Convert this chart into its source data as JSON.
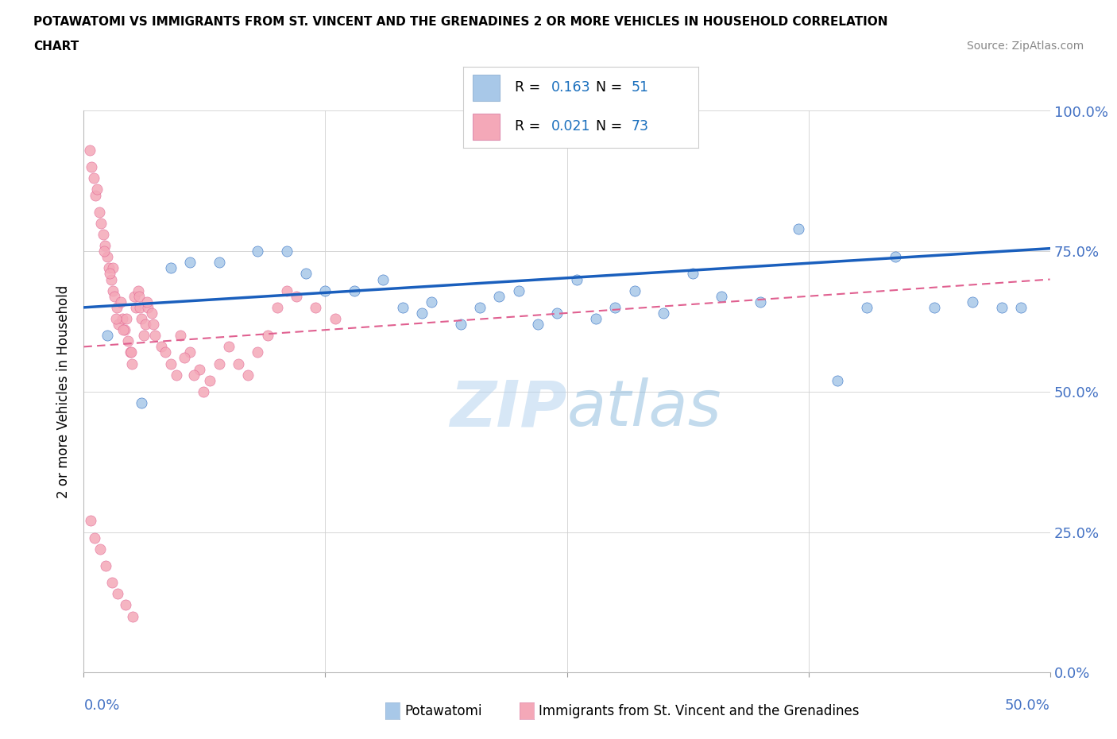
{
  "title_line1": "POTAWATOMI VS IMMIGRANTS FROM ST. VINCENT AND THE GRENADINES 2 OR MORE VEHICLES IN HOUSEHOLD CORRELATION",
  "title_line2": "CHART",
  "source_text": "Source: ZipAtlas.com",
  "ylabel": "2 or more Vehicles in Household",
  "xlim": [
    0,
    50
  ],
  "ylim": [
    0,
    100
  ],
  "yticks": [
    0,
    25,
    50,
    75,
    100
  ],
  "ytick_labels": [
    "0.0%",
    "25.0%",
    "50.0%",
    "75.0%",
    "100.0%"
  ],
  "color_blue": "#a8c8e8",
  "color_pink": "#f4a8b8",
  "trendline_blue_color": "#1a5fbd",
  "trendline_pink_color": "#e06090",
  "R_N_color": "#1a6fbd",
  "ytick_color": "#4472c4",
  "xtick_color": "#4472c4",
  "legend1_R": "0.163",
  "legend1_N": "51",
  "legend2_R": "0.021",
  "legend2_N": "73",
  "potawatomi_x": [
    1.2,
    3.0,
    4.5,
    5.5,
    7.0,
    9.0,
    10.5,
    11.5,
    12.5,
    14.0,
    15.5,
    16.5,
    17.5,
    18.0,
    19.5,
    20.5,
    21.5,
    22.5,
    23.5,
    24.5,
    25.5,
    26.5,
    27.5,
    28.5,
    30.0,
    31.5,
    33.0,
    35.0,
    37.0,
    39.0,
    40.5,
    42.0,
    44.0,
    46.0,
    47.5,
    48.5
  ],
  "potawatomi_y": [
    60.0,
    48.0,
    72.0,
    73.0,
    73.0,
    75.0,
    75.0,
    71.0,
    68.0,
    68.0,
    70.0,
    65.0,
    64.0,
    66.0,
    62.0,
    65.0,
    67.0,
    68.0,
    62.0,
    64.0,
    70.0,
    63.0,
    65.0,
    68.0,
    64.0,
    71.0,
    67.0,
    66.0,
    79.0,
    52.0,
    65.0,
    74.0,
    65.0,
    66.0,
    65.0,
    65.0
  ],
  "svg_x": [
    0.3,
    0.5,
    0.6,
    0.8,
    0.9,
    1.0,
    1.1,
    1.2,
    1.3,
    1.4,
    1.5,
    1.5,
    1.6,
    1.7,
    1.8,
    1.9,
    2.0,
    2.1,
    2.2,
    2.3,
    2.4,
    2.5,
    2.6,
    2.7,
    2.8,
    2.9,
    3.0,
    3.1,
    3.2,
    3.3,
    3.5,
    3.7,
    4.0,
    4.5,
    5.0,
    5.5,
    6.0,
    6.5,
    7.0,
    7.5,
    8.0,
    8.5,
    9.0,
    9.5,
    10.0,
    10.5,
    11.0,
    12.0,
    13.0,
    0.4,
    0.7,
    1.05,
    1.35,
    1.65,
    2.05,
    2.45,
    2.85,
    3.25,
    3.6,
    4.2,
    4.8,
    5.2,
    5.7,
    6.2,
    0.35,
    0.55,
    0.85,
    1.15,
    1.45,
    1.75,
    2.15,
    2.55
  ],
  "svg_y": [
    93.0,
    88.0,
    85.0,
    82.0,
    80.0,
    78.0,
    76.0,
    74.0,
    72.0,
    70.0,
    68.0,
    72.0,
    67.0,
    65.0,
    62.0,
    66.0,
    63.0,
    61.0,
    63.0,
    59.0,
    57.0,
    55.0,
    67.0,
    65.0,
    68.0,
    65.0,
    63.0,
    60.0,
    62.0,
    65.0,
    64.0,
    60.0,
    58.0,
    55.0,
    60.0,
    57.0,
    54.0,
    52.0,
    55.0,
    58.0,
    55.0,
    53.0,
    57.0,
    60.0,
    65.0,
    68.0,
    67.0,
    65.0,
    63.0,
    90.0,
    86.0,
    75.0,
    71.0,
    63.0,
    61.0,
    57.0,
    67.0,
    66.0,
    62.0,
    57.0,
    53.0,
    56.0,
    53.0,
    50.0,
    27.0,
    24.0,
    22.0,
    19.0,
    16.0,
    14.0,
    12.0,
    10.0
  ]
}
